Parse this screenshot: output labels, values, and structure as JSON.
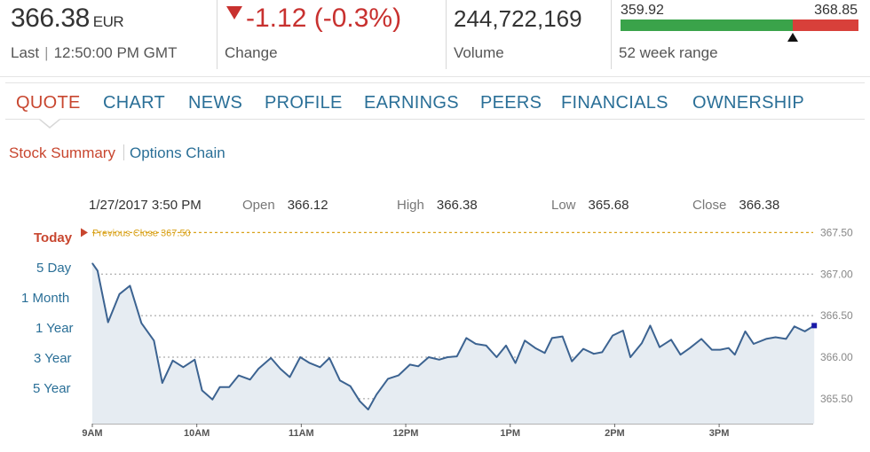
{
  "quote": {
    "price": "366.38",
    "currency": "EUR",
    "last_label": "Last",
    "time": "12:50:00 PM GMT",
    "change": "-1.12 (-0.3%)",
    "change_label": "Change",
    "volume": "244,722,169",
    "volume_label": "Volume",
    "range_low": "359.92",
    "range_high": "368.85",
    "range_label": "52 week range",
    "range_position": 0.724
  },
  "tabs": [
    {
      "label": "QUOTE",
      "active": true
    },
    {
      "label": "CHART",
      "active": false
    },
    {
      "label": "NEWS",
      "active": false
    },
    {
      "label": "PROFILE",
      "active": false
    },
    {
      "label": "EARNINGS",
      "active": false
    },
    {
      "label": "PEERS",
      "active": false
    },
    {
      "label": "FINANCIALS",
      "active": false
    },
    {
      "label": "OWNERSHIP",
      "active": false
    }
  ],
  "subnav": {
    "summary": "Stock Summary",
    "options": "Options Chain"
  },
  "chart_header": {
    "datetime": "1/27/2017 3:50 PM",
    "open_label": "Open",
    "open": "366.12",
    "high_label": "High",
    "high": "366.38",
    "low_label": "Low",
    "low": "365.68",
    "close_label": "Close",
    "close": "366.38"
  },
  "periods": [
    "Today",
    "5 Day",
    "1 Month",
    "1 Year",
    "3 Year",
    "5 Year"
  ],
  "colors": {
    "accent_red": "#c8462f",
    "link_blue": "#2a6f97",
    "range_green": "#3aa34a",
    "range_red": "#d8403a",
    "line": "#3c6391",
    "area": "#e6ecf2",
    "prev_close": "#d9a21b"
  },
  "chart_data": {
    "type": "area",
    "title": "",
    "xlabel": "",
    "ylabel": "",
    "previous_close_label": "Previous Close 367.50",
    "previous_close": 367.5,
    "ylim": [
      365.2,
      367.6
    ],
    "yticks": [
      "365.50",
      "366.00",
      "366.50",
      "367.00",
      "367.50"
    ],
    "ytick_values": [
      365.5,
      366.0,
      366.5,
      367.0,
      367.5
    ],
    "xticks": [
      "9AM",
      "10AM",
      "11AM",
      "12PM",
      "1PM",
      "2PM",
      "3PM"
    ],
    "xtick_values": [
      9,
      10,
      11,
      12,
      13,
      14,
      15
    ],
    "xlim": [
      9,
      15.9
    ],
    "grid": true,
    "series": [
      {
        "x": [
          9.0,
          9.05,
          9.15,
          9.26,
          9.36,
          9.47,
          9.59,
          9.67,
          9.77,
          9.87,
          9.98,
          10.05,
          10.15,
          10.22,
          10.31,
          10.4,
          10.51,
          10.59,
          10.71,
          10.8,
          10.89,
          10.99,
          11.08,
          11.18,
          11.27,
          11.37,
          11.47,
          11.56,
          11.64,
          11.72,
          11.83,
          11.93,
          12.04,
          12.12,
          12.22,
          12.32,
          12.4,
          12.49,
          12.58,
          12.67,
          12.77,
          12.87,
          12.96,
          13.05,
          13.14,
          13.24,
          13.33,
          13.4,
          13.5,
          13.59,
          13.7,
          13.8,
          13.88,
          13.98,
          14.08,
          14.15,
          14.26,
          14.34,
          14.43,
          14.54,
          14.63,
          14.72,
          14.83,
          14.93,
          15.01,
          15.09,
          15.15,
          15.25,
          15.33,
          15.45,
          15.54,
          15.64,
          15.72,
          15.82,
          15.91
        ],
        "y": [
          367.13,
          367.04,
          366.42,
          366.76,
          366.86,
          366.41,
          366.2,
          365.69,
          365.96,
          365.88,
          365.97,
          365.6,
          365.49,
          365.64,
          365.64,
          365.78,
          365.73,
          365.86,
          365.99,
          365.86,
          365.76,
          366.0,
          365.93,
          365.88,
          365.99,
          365.72,
          365.65,
          365.47,
          365.37,
          365.55,
          365.74,
          365.78,
          365.91,
          365.89,
          366.0,
          365.97,
          366.0,
          366.01,
          366.23,
          366.16,
          366.14,
          366.0,
          366.14,
          365.93,
          366.2,
          366.11,
          366.05,
          366.23,
          366.25,
          365.95,
          366.1,
          366.04,
          366.06,
          366.26,
          366.32,
          366.0,
          366.17,
          366.38,
          366.12,
          366.21,
          366.03,
          366.11,
          366.22,
          366.09,
          366.09,
          366.11,
          366.03,
          366.31,
          366.16,
          366.22,
          366.24,
          366.22,
          366.37,
          366.31,
          366.38
        ]
      }
    ]
  }
}
